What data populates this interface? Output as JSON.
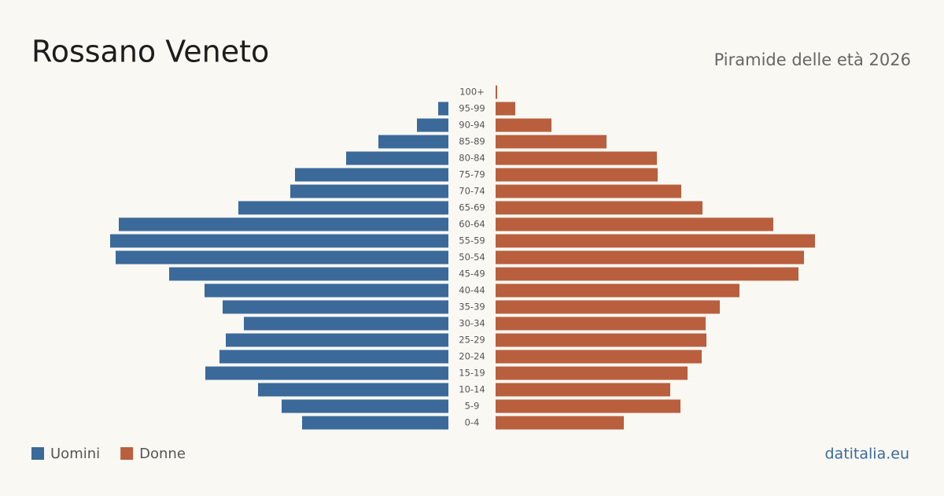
{
  "chart_data": {
    "type": "pyramid",
    "title": "Rossano Veneto",
    "subtitle": "Piramide delle età 2026",
    "source": "datitalia.eu",
    "categories": [
      "100+",
      "95-99",
      "90-94",
      "85-89",
      "80-84",
      "75-79",
      "70-74",
      "65-69",
      "60-64",
      "55-59",
      "50-54",
      "45-49",
      "40-44",
      "35-39",
      "30-34",
      "25-29",
      "20-24",
      "15-19",
      "10-14",
      "5-9",
      "0-4"
    ],
    "series": [
      {
        "name": "Uomini",
        "color": "#3b6a9a",
        "side": "left",
        "values": [
          0,
          13,
          40,
          89,
          130,
          195,
          201,
          267,
          419,
          430,
          423,
          355,
          310,
          287,
          260,
          283,
          291,
          309,
          242,
          212,
          186
        ]
      },
      {
        "name": "Donne",
        "color": "#b95f3e",
        "side": "right",
        "values": [
          2,
          25,
          71,
          141,
          205,
          206,
          236,
          263,
          353,
          406,
          392,
          385,
          310,
          285,
          267,
          268,
          262,
          244,
          222,
          235,
          163
        ]
      }
    ]
  }
}
